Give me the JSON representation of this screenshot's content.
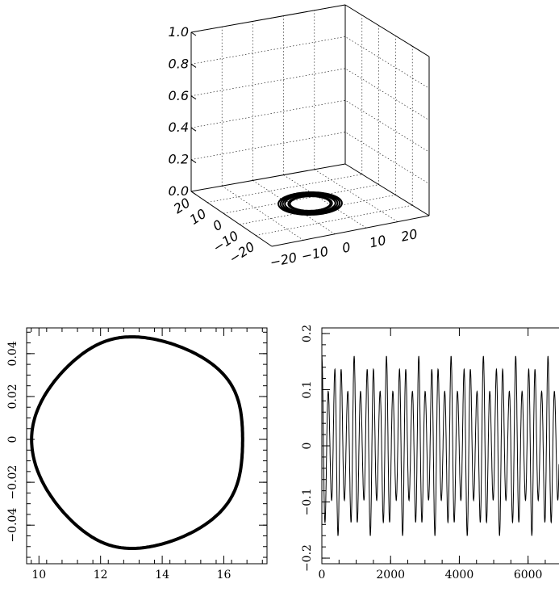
{
  "chart_data": [
    {
      "type": "line3d",
      "title": "",
      "z_ticks": [
        "0.0",
        "0.2",
        "0.4",
        "0.6",
        "0.8",
        "1.0"
      ],
      "zlim": [
        0,
        1
      ],
      "x_ticks": [
        "−20",
        "−10",
        "0",
        "10",
        "20"
      ],
      "xlim": [
        -25,
        25
      ],
      "y_ticks": [
        "20",
        "10",
        "0",
        "−10",
        "−20"
      ],
      "ylim": [
        -25,
        25
      ],
      "grid": true,
      "rings": [
        {
          "radius_x": 14.5,
          "radius_y": 14.5
        },
        {
          "radius_x": 13.5,
          "radius_y": 13.5
        },
        {
          "radius_x": 12.5,
          "radius_y": 12.5
        },
        {
          "radius_x": 11.5,
          "radius_y": 11.5
        },
        {
          "radius_x": 10.0,
          "radius_y": 10.0
        },
        {
          "radius_x": 9.2,
          "radius_y": 9.2
        }
      ]
    },
    {
      "type": "line",
      "title": "",
      "xlim": [
        9.6,
        17.4
      ],
      "ylim": [
        -0.058,
        0.052
      ],
      "x_ticks": [
        "10",
        "12",
        "14",
        "16"
      ],
      "x_tick_values": [
        10,
        12,
        14,
        16
      ],
      "y_ticks": [
        "−0.04",
        "−0.02",
        "0",
        "0.02",
        "0.04"
      ],
      "y_tick_values": [
        -0.04,
        -0.02,
        0,
        0.02,
        0.04
      ],
      "curve": {
        "x_center": 13.4,
        "x_min": 10.0,
        "x_max": 16.85,
        "y_min": -0.0505,
        "y_max": 0.0475
      }
    },
    {
      "type": "line",
      "title": "",
      "xlim": [
        0,
        6900
      ],
      "ylim": [
        -0.21,
        0.21
      ],
      "x_ticks": [
        "0",
        "2000",
        "4000",
        "6000"
      ],
      "x_tick_values": [
        0,
        2000,
        4000,
        6000
      ],
      "y_ticks": [
        "−0.2",
        "−0.1",
        "0",
        "0.1",
        "0.2"
      ],
      "y_tick_values": [
        -0.2,
        -0.1,
        0,
        0.1,
        0.2
      ],
      "signal": {
        "period": 188,
        "amplitude_min": 0.09,
        "amplitude_max": 0.16,
        "envelope_period": 470
      }
    }
  ]
}
